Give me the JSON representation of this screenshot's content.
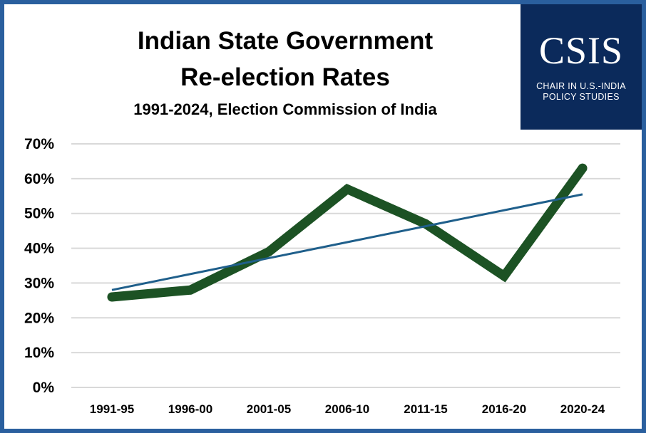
{
  "title_line1": "Indian State Government",
  "title_line2": "Re-election Rates",
  "subtitle": "1991-2024, Election Commission of India",
  "logo": {
    "word": "CSIS",
    "line1": "CHAIR IN U.S.-INDIA",
    "line2": "POLICY STUDIES"
  },
  "colors": {
    "frame": "#2a5f9e",
    "series": "#1c5224",
    "trendline": "#1f5f8b",
    "gridline": "#d9d9d9",
    "logo_bg": "#0b2a5b"
  },
  "chart_data": {
    "type": "line",
    "title": "Indian State Government Re-election Rates",
    "subtitle": "1991-2024, Election Commission of India",
    "categories": [
      "1991-95",
      "1996-00",
      "2001-05",
      "2006-10",
      "2011-15",
      "2016-20",
      "2020-24"
    ],
    "series": [
      {
        "values": [
          26,
          28,
          39,
          57,
          47,
          32,
          63
        ]
      }
    ],
    "trendline": {
      "type": "linear",
      "start": 28,
      "end": 55.5
    },
    "y_ticks": [
      "0%",
      "10%",
      "20%",
      "30%",
      "40%",
      "50%",
      "60%",
      "70%"
    ],
    "ylim": [
      0,
      70
    ],
    "y_unit": "%",
    "grid": true,
    "legend": "none",
    "xlabel": "",
    "ylabel": ""
  }
}
